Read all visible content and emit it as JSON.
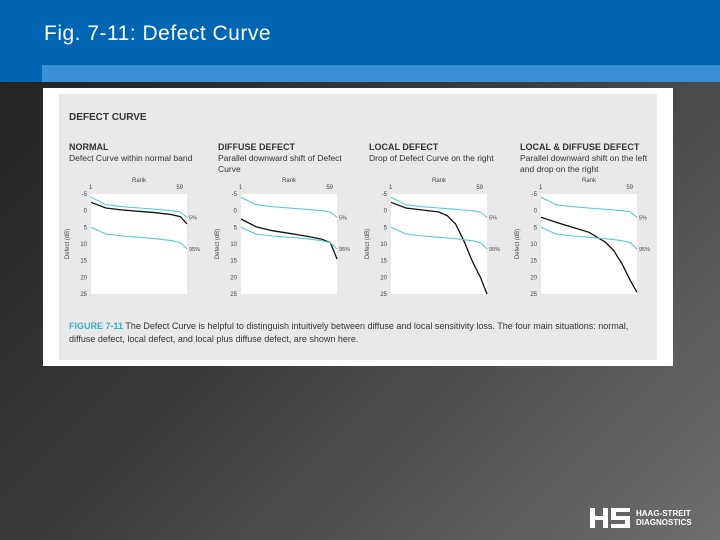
{
  "slide": {
    "title": "Fig. 7-11: Defect Curve",
    "logo": {
      "line1": "HAAG-STREIT",
      "line2": "DIAGNOSTICS"
    }
  },
  "figure": {
    "heading": "DEFECT CURVE",
    "caption_label": "FIGURE 7-11",
    "caption_text": "The Defect Curve is helpful to distinguish intuitively between diffuse and local sensitivity loss. The four main situations: normal, diffuse defect, local defect, and local plus diffuse defect, are shown here."
  },
  "colors": {
    "title_bar": "#0066b3",
    "band": "#5bc8d6",
    "curve": "#111111",
    "caption_label": "#3ab0c8"
  },
  "chart_data": [
    {
      "type": "line",
      "title": "NORMAL",
      "subtitle": "Defect Curve within normal band",
      "xlabel": "Rank",
      "ylabel": "Defect (dB)",
      "xticks": [
        "1",
        "59"
      ],
      "yticks": [
        "-5",
        "0",
        "5",
        "10",
        "15",
        "20",
        "25"
      ],
      "ylim": [
        -5,
        25
      ],
      "yreversed": true,
      "band_labels": [
        "5%",
        "95%"
      ],
      "x": [
        1,
        10,
        20,
        30,
        40,
        50,
        55,
        59
      ],
      "series": [
        {
          "values": [
            -2.5,
            -0.8,
            -0.2,
            0.2,
            0.6,
            1.2,
            1.8,
            4.0
          ]
        },
        {
          "values": [
            -4.0,
            -1.8,
            -1.2,
            -0.8,
            -0.4,
            0.0,
            0.4,
            2.0
          ]
        },
        {
          "values": [
            5.0,
            7.0,
            7.6,
            8.0,
            8.4,
            9.0,
            9.6,
            11.5
          ]
        }
      ]
    },
    {
      "type": "line",
      "title": "DIFFUSE DEFECT",
      "subtitle": "Parallel downward shift of Defect Curve",
      "xlabel": "Rank",
      "ylabel": "Defect (dB)",
      "xticks": [
        "1",
        "59"
      ],
      "yticks": [
        "-5",
        "0",
        "5",
        "10",
        "15",
        "20",
        "25"
      ],
      "ylim": [
        -5,
        25
      ],
      "yreversed": true,
      "band_labels": [
        "5%",
        "95%"
      ],
      "x": [
        1,
        10,
        20,
        30,
        40,
        50,
        55,
        59
      ],
      "series": [
        {
          "values": [
            2.5,
            4.8,
            6.0,
            6.8,
            7.6,
            8.6,
            9.6,
            14.5
          ]
        },
        {
          "values": [
            -4.0,
            -1.8,
            -1.2,
            -0.8,
            -0.4,
            0.0,
            0.4,
            2.0
          ]
        },
        {
          "values": [
            5.0,
            7.0,
            7.6,
            8.0,
            8.4,
            9.0,
            9.6,
            11.5
          ]
        }
      ]
    },
    {
      "type": "line",
      "title": "LOCAL DEFECT",
      "subtitle": "Drop of Defect Curve on the right",
      "xlabel": "Rank",
      "ylabel": "Defect (dB)",
      "xticks": [
        "1",
        "59"
      ],
      "yticks": [
        "-5",
        "0",
        "5",
        "10",
        "15",
        "20",
        "25"
      ],
      "ylim": [
        -5,
        25
      ],
      "yreversed": true,
      "band_labels": [
        "5%",
        "95%"
      ],
      "x": [
        1,
        10,
        20,
        30,
        35,
        40,
        45,
        50,
        55,
        59
      ],
      "series": [
        {
          "values": [
            -2.5,
            -0.8,
            -0.2,
            0.4,
            1.5,
            4.0,
            9.0,
            15.0,
            20.0,
            25.0
          ]
        },
        {
          "values": [
            -4.0,
            -1.8,
            -1.2,
            -0.8,
            -0.6,
            -0.4,
            -0.2,
            0.0,
            0.4,
            2.0
          ]
        },
        {
          "values": [
            5.0,
            7.0,
            7.6,
            8.0,
            8.2,
            8.4,
            8.7,
            9.0,
            9.6,
            11.5
          ]
        }
      ]
    },
    {
      "type": "line",
      "title": "LOCAL & DIFFUSE DEFECT",
      "subtitle": "Parallel downward shift on the left and drop on the right",
      "xlabel": "Rank",
      "ylabel": "Defect (dB)",
      "xticks": [
        "1",
        "59"
      ],
      "yticks": [
        "-5",
        "0",
        "5",
        "10",
        "15",
        "20",
        "25"
      ],
      "ylim": [
        -5,
        25
      ],
      "yreversed": true,
      "band_labels": [
        "5%",
        "95%"
      ],
      "x": [
        1,
        10,
        20,
        30,
        40,
        45,
        50,
        55,
        59
      ],
      "series": [
        {
          "values": [
            2.0,
            3.5,
            5.0,
            6.5,
            9.5,
            12.0,
            16.0,
            21.0,
            24.5
          ]
        },
        {
          "values": [
            -4.0,
            -1.8,
            -1.2,
            -0.8,
            -0.4,
            -0.2,
            0.0,
            0.4,
            2.0
          ]
        },
        {
          "values": [
            5.0,
            7.0,
            7.6,
            8.0,
            8.4,
            8.7,
            9.0,
            9.6,
            11.5
          ]
        }
      ]
    }
  ]
}
